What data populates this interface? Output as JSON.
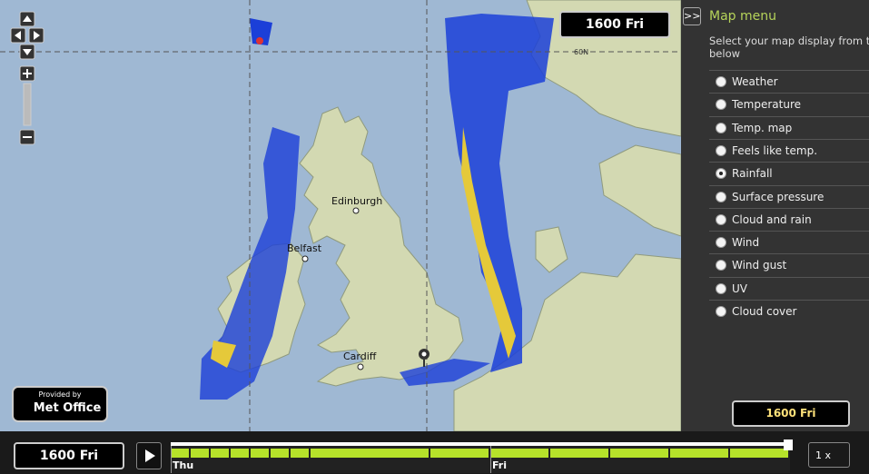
{
  "clock": {
    "time": "1600 Fri"
  },
  "map": {
    "grid_label": "60N",
    "places": [
      "Edinburgh",
      "Belfast",
      "Cardiff"
    ]
  },
  "logo": {
    "line1": "Provided by",
    "line2": "Met Office"
  },
  "menu": {
    "title": "Map menu",
    "instructions": "Select your map display from the options below",
    "options": [
      "Weather",
      "Temperature",
      "Temp. map",
      "Feels like temp.",
      "Rainfall",
      "Surface pressure",
      "Cloud and rain",
      "Wind",
      "Wind gust",
      "UV",
      "Cloud cover"
    ],
    "selected": 4
  },
  "timeline": {
    "days": [
      "Thu",
      "Fri"
    ],
    "speed": "1 x"
  }
}
